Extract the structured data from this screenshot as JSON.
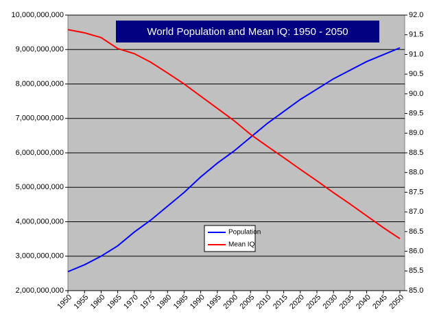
{
  "chart_data": {
    "type": "line",
    "title": "World Population and Mean IQ: 1950 - 2050",
    "x": [
      1950,
      1955,
      1960,
      1965,
      1970,
      1975,
      1980,
      1985,
      1990,
      1995,
      2000,
      2005,
      2010,
      2015,
      2020,
      2025,
      2030,
      2035,
      2040,
      2045,
      2050
    ],
    "xlim": [
      1950,
      2050
    ],
    "xticks": [
      1950,
      1955,
      1960,
      1965,
      1970,
      1975,
      1980,
      1985,
      1990,
      1995,
      2000,
      2005,
      2010,
      2015,
      2020,
      2025,
      2030,
      2035,
      2040,
      2045,
      2050
    ],
    "ylim": [
      2000000000,
      10000000000
    ],
    "yticks": [
      {
        "value": 2000000000,
        "label": "2,000,000,000"
      },
      {
        "value": 3000000000,
        "label": "3,000,000,000"
      },
      {
        "value": 4000000000,
        "label": "4,000,000,000"
      },
      {
        "value": 5000000000,
        "label": "5,000,000,000"
      },
      {
        "value": 6000000000,
        "label": "6,000,000,000"
      },
      {
        "value": 7000000000,
        "label": "7,000,000,000"
      },
      {
        "value": 8000000000,
        "label": "8,000,000,000"
      },
      {
        "value": 9000000000,
        "label": "9,000,000,000"
      },
      {
        "value": 10000000000,
        "label": "10,000,000,000"
      }
    ],
    "y2lim": [
      85,
      92
    ],
    "y2ticks": [
      {
        "value": 85,
        "label": "85.0"
      },
      85.5,
      {
        "value": 86,
        "label": "86.0"
      },
      86.5,
      {
        "value": 87,
        "label": "87.0"
      },
      87.5,
      {
        "value": 88,
        "label": "88.0"
      },
      88.5,
      {
        "value": 89,
        "label": "89.0"
      },
      89.5,
      {
        "value": 90,
        "label": "90.0"
      },
      90.5,
      {
        "value": 91,
        "label": "91.0"
      },
      91.5,
      {
        "value": 92,
        "label": "92.0"
      }
    ],
    "grid": true,
    "series": [
      {
        "name": "Population",
        "color": "#0000ff",
        "values": [
          2550000000,
          2750000000,
          3000000000,
          3300000000,
          3700000000,
          4050000000,
          4450000000,
          4850000000,
          5300000000,
          5700000000,
          6050000000,
          6450000000,
          6850000000,
          7200000000,
          7550000000,
          7850000000,
          8150000000,
          8400000000,
          8650000000,
          8850000000,
          9050000000
        ]
      },
      {
        "name": "Mean IQ",
        "color": "#ff0000",
        "axis": "y2",
        "values": [
          91.63,
          91.55,
          91.43,
          91.15,
          91.02,
          90.8,
          90.53,
          90.25,
          89.94,
          89.63,
          89.32,
          88.97,
          88.67,
          88.38,
          88.08,
          87.79,
          87.49,
          87.2,
          86.9,
          86.6,
          86.32
        ]
      }
    ]
  }
}
